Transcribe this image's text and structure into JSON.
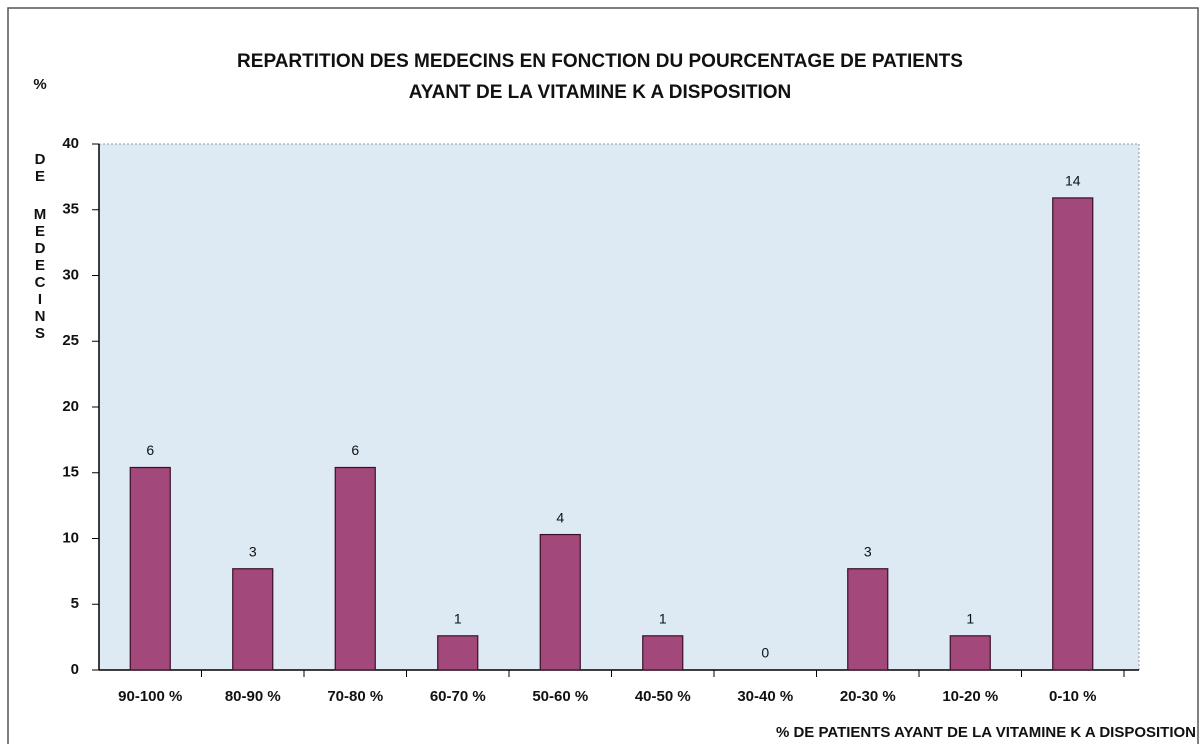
{
  "chart_data": {
    "type": "bar",
    "title": [
      "REPARTITION DES MEDECINS EN FONCTION DU POURCENTAGE DE PATIENTS",
      "AYANT DE LA VITAMINE K A DISPOSITION"
    ],
    "ylabel": [
      "%",
      "DE",
      "MEDECINS"
    ],
    "xlabel": "% DE PATIENTS AYANT DE LA VITAMINE K A DISPOSITION",
    "categories": [
      "90-100 %",
      "80-90 %",
      "70-80 %",
      "60-70 %",
      "50-60 %",
      "40-50 %",
      "30-40 %",
      "20-30 %",
      "10-20 %",
      "0-10 %"
    ],
    "values": [
      15.4,
      7.7,
      15.4,
      2.6,
      10.3,
      2.6,
      0,
      7.7,
      2.6,
      35.9
    ],
    "counts": [
      6,
      3,
      6,
      1,
      4,
      1,
      0,
      3,
      1,
      14
    ],
    "color": "#a3487a",
    "ylim": [
      0,
      40
    ],
    "yticks": [
      0,
      5,
      10,
      15,
      20,
      25,
      30,
      35,
      40
    ],
    "grid": false
  }
}
